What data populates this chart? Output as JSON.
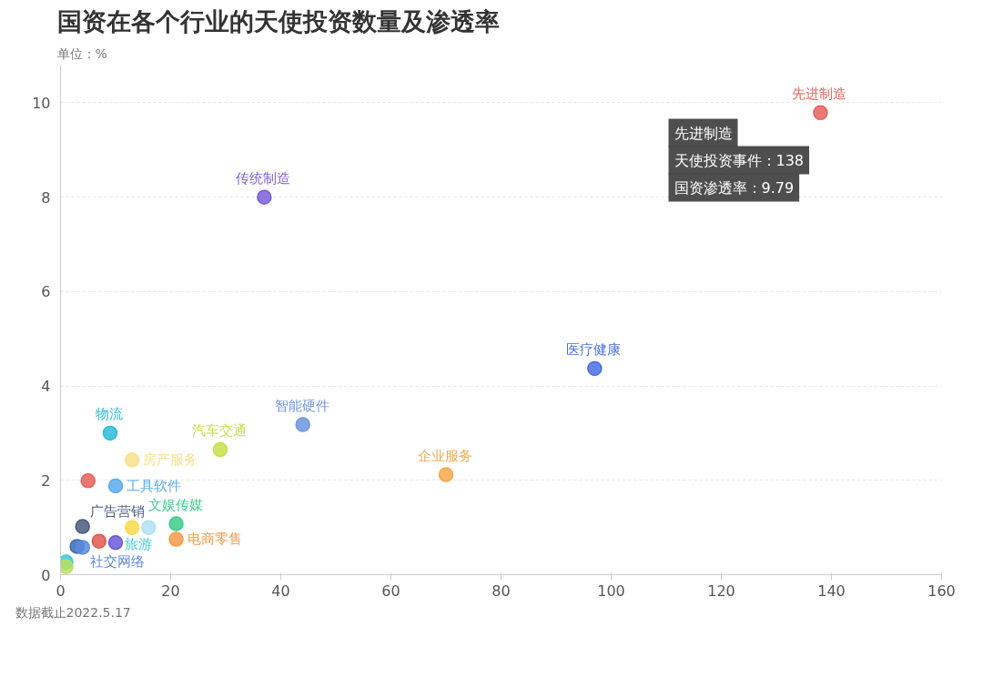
{
  "chart_data": {
    "type": "scatter",
    "title": "国资在各个行业的天使投资数量及渗透率",
    "subtitle": "单位：%",
    "xlim": [
      0,
      160
    ],
    "xticks": [
      0,
      20,
      40,
      60,
      80,
      100,
      120,
      140,
      160
    ],
    "ylim": [
      0,
      10.8
    ],
    "yticks": [
      0,
      2,
      4,
      6,
      8,
      10
    ],
    "grid": "y",
    "legend": false,
    "marker": "circle",
    "series": [
      {
        "name": "先进制造",
        "color": "#e8625a",
        "x": [
          138
        ],
        "values": [
          9.79
        ]
      },
      {
        "name": "传统制造",
        "color": "#7b5fd6",
        "x": [
          37
        ],
        "values": [
          8.0
        ]
      },
      {
        "name": "医疗健康",
        "color": "#4a6fe3",
        "x": [
          97
        ],
        "values": [
          4.37
        ]
      },
      {
        "name": "智能硬件",
        "color": "#6f95e0",
        "x": [
          44
        ],
        "values": [
          3.18
        ]
      },
      {
        "name": "企业服务",
        "color": "#f5a94a",
        "x": [
          70
        ],
        "values": [
          2.12
        ]
      },
      {
        "name": "汽车交通",
        "color": "#c5e04a",
        "x": [
          29
        ],
        "values": [
          2.65
        ]
      },
      {
        "name": "物流",
        "color": "#2bbcd8",
        "x": [
          9
        ],
        "values": [
          3.0
        ]
      },
      {
        "name": "房产服务",
        "color": "#f8e08a",
        "x": [
          13
        ],
        "values": [
          2.43
        ]
      },
      {
        "name": null,
        "color": "#e8625a",
        "x": [
          5
        ],
        "values": [
          1.99
        ]
      },
      {
        "name": "工具软件",
        "color": "#5aaaf0",
        "x": [
          10
        ],
        "values": [
          1.88
        ]
      },
      {
        "name": "广告营销",
        "color": "#4a5a80",
        "x": [
          4
        ],
        "values": [
          1.02
        ]
      },
      {
        "name": null,
        "color": "#3a6ab0",
        "x": [
          3
        ],
        "values": [
          0.6
        ]
      },
      {
        "name": "社交网络",
        "color": "#5a8ae0",
        "x": [
          4
        ],
        "values": [
          0.58
        ]
      },
      {
        "name": null,
        "color": "#e05a50",
        "x": [
          7
        ],
        "values": [
          0.71
        ]
      },
      {
        "name": null,
        "color": "#6a5ad8",
        "x": [
          10
        ],
        "values": [
          0.68
        ]
      },
      {
        "name": "旅游",
        "color": "#3cc8d8",
        "x": [
          1
        ],
        "values": [
          0.27
        ]
      },
      {
        "name": null,
        "color": "#b8e060",
        "x": [
          1
        ],
        "values": [
          0.17
        ]
      },
      {
        "name": "文娱传媒",
        "color": "#3ecb8a",
        "x": [
          21
        ],
        "values": [
          1.08
        ]
      },
      {
        "name": "电商零售",
        "color": "#f59a4a",
        "x": [
          21
        ],
        "values": [
          0.75
        ]
      },
      {
        "name": null,
        "color": "#fcd94a",
        "x": [
          13
        ],
        "values": [
          1.0
        ]
      },
      {
        "name": null,
        "color": "#b0e0f5",
        "x": [
          16
        ],
        "values": [
          1.0
        ]
      }
    ],
    "annotations": [
      "先进制造",
      "天使投资事件：138",
      "国资渗透率：9.79",
      "数据截止2022.5.17"
    ]
  }
}
